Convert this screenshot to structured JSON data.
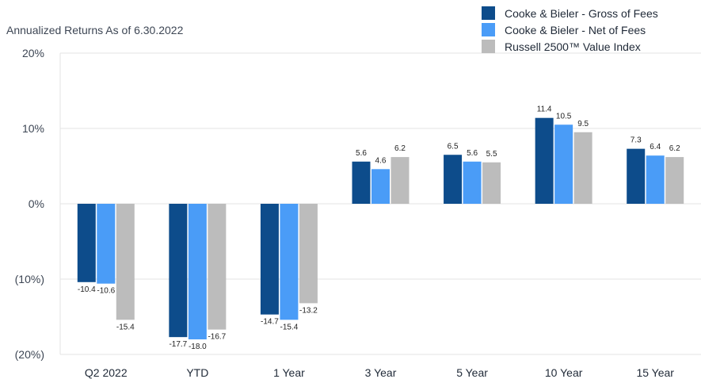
{
  "chart_data": {
    "type": "bar",
    "subtitle": "Annualized Returns As of 6.30.2022",
    "categories": [
      "Q2 2022",
      "YTD",
      "1 Year",
      "3 Year",
      "5 Year",
      "10 Year",
      "15 Year"
    ],
    "series": [
      {
        "name": "Cooke & Bieler - Gross of Fees",
        "color": "#0d4c8b",
        "values": [
          -10.4,
          -17.7,
          -14.7,
          5.6,
          6.5,
          11.4,
          7.3
        ]
      },
      {
        "name": "Cooke & Bieler - Net of Fees",
        "color": "#4a9cf7",
        "values": [
          -10.6,
          -18.0,
          -15.4,
          4.6,
          5.6,
          10.5,
          6.4
        ]
      },
      {
        "name": "Russell 2500™ Value Index",
        "color": "#bcbcbc",
        "values": [
          -15.4,
          -16.7,
          -13.2,
          6.2,
          5.5,
          9.5,
          6.2
        ]
      }
    ],
    "data_labels": [
      [
        "-10.4",
        "-17.7",
        "-14.7",
        "5.6",
        "6.5",
        "11.4",
        "7.3"
      ],
      [
        "-10.6",
        "-18.0",
        "-15.4",
        "4.6",
        "5.6",
        "10.5",
        "6.4"
      ],
      [
        "-15.4",
        "-16.7",
        "-13.2",
        "6.2",
        "5.5",
        "9.5",
        "6.2"
      ]
    ],
    "ylim": [
      -20,
      20
    ],
    "yticks": [
      20,
      10,
      0,
      -10,
      -20
    ],
    "ytick_labels": [
      "20%",
      "10%",
      "0%",
      "(10%)",
      "(20%)"
    ],
    "grid": true,
    "legend_position": "top-right"
  }
}
